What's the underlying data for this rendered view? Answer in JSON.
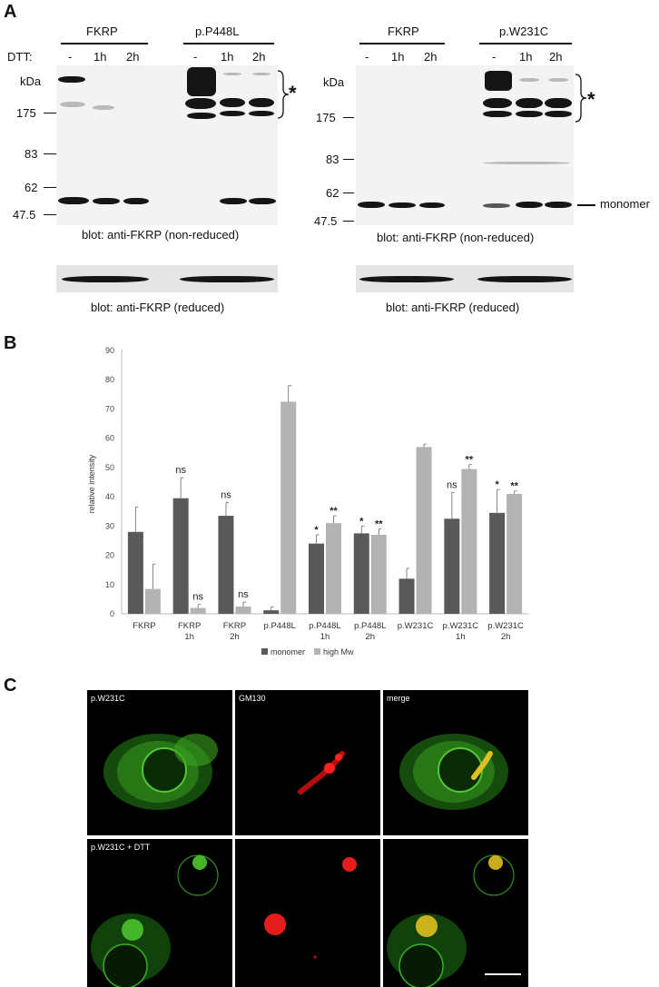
{
  "panels": {
    "a": "A",
    "b": "B",
    "c": "C"
  },
  "panel_a": {
    "left": {
      "groups": [
        "FKRP",
        "p.P448L"
      ],
      "dtt_label": "DTT:",
      "lanes": [
        "-",
        "1h",
        "2h",
        "-",
        "1h",
        "2h"
      ],
      "kda": "kDa",
      "markers": [
        "175",
        "83",
        "62",
        "47.5"
      ],
      "asterisk": "*",
      "caption_nonreduced": "blot: anti-FKRP (non-reduced)",
      "caption_reduced": "blot: anti-FKRP (reduced)"
    },
    "right": {
      "groups": [
        "FKRP",
        "p.W231C"
      ],
      "lanes": [
        "-",
        "1h",
        "2h",
        "-",
        "1h",
        "2h"
      ],
      "kda": "kDa",
      "markers": [
        "175",
        "83",
        "62",
        "47.5"
      ],
      "asterisk": "*",
      "monomer_label": "monomer",
      "caption_nonreduced": "blot: anti-FKRP (non-reduced)",
      "caption_reduced": "blot: anti-FKRP (reduced)"
    }
  },
  "chart_data": {
    "type": "bar",
    "ylabel": "relative intensity",
    "ylim": [
      0,
      90
    ],
    "yticks": [
      0,
      10,
      20,
      30,
      40,
      50,
      60,
      70,
      80,
      90
    ],
    "categories": [
      [
        "FKRP"
      ],
      [
        "FKRP",
        "1h"
      ],
      [
        "FKRP",
        "2h"
      ],
      [
        "p.P448L"
      ],
      [
        "p.P448L",
        "1h"
      ],
      [
        "p.P448L",
        "2h"
      ],
      [
        "p.W231C"
      ],
      [
        "p.W231C",
        "1h"
      ],
      [
        "p.W231C",
        "2h"
      ]
    ],
    "series": [
      {
        "name": "monomer",
        "color": "#595959",
        "values": [
          28,
          39.5,
          33.5,
          1.2,
          24,
          27.5,
          12,
          32.5,
          34.5
        ],
        "errors": [
          8.5,
          7,
          4.5,
          1.2,
          3,
          2.5,
          3.5,
          9,
          8
        ],
        "sig": [
          "",
          "ns",
          "ns",
          "",
          "*",
          "*",
          "",
          "ns",
          "*"
        ]
      },
      {
        "name": "high Mw",
        "color": "#b3b3b3",
        "values": [
          8.5,
          2,
          2.5,
          72.5,
          31,
          27,
          57,
          49.5,
          41
        ],
        "errors": [
          8.5,
          1.2,
          1.5,
          5.5,
          2.5,
          2,
          1,
          1.5,
          1
        ],
        "sig": [
          "",
          "ns",
          "ns",
          "",
          "**",
          "**",
          "",
          "**",
          "**"
        ]
      }
    ],
    "grid": false,
    "legend_position": "bottom"
  },
  "panel_c": {
    "row1": [
      "p.W231C",
      "GM130",
      "merge"
    ],
    "row2": [
      "p.W231C + DTT",
      "",
      ""
    ]
  }
}
